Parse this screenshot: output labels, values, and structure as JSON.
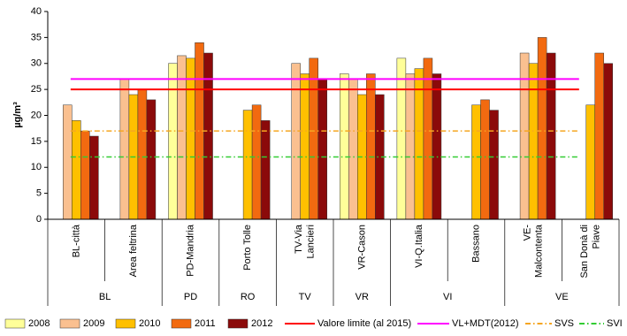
{
  "chart_data": {
    "type": "bar",
    "y_label": "µg/m³",
    "categories": [
      "BL-città",
      "Area feltrina",
      "PD-Mandria",
      "Porto Tolle",
      "TV-Via\nLancieri",
      "VR-Cason",
      "VI-Q.Italia",
      "Bassano",
      "VE-\nMalcontenta",
      "San Donà di\nPiave"
    ],
    "category_groups": [
      "BL",
      "BL",
      "PD",
      "RO",
      "TV",
      "VR",
      "VI",
      "VI",
      "VE",
      "VE"
    ],
    "series": [
      {
        "name": "2008",
        "color": "#ffff99",
        "values": [
          null,
          null,
          30,
          null,
          null,
          28,
          31,
          null,
          null,
          null
        ]
      },
      {
        "name": "2009",
        "color": "#fac090",
        "values": [
          22,
          27,
          31.5,
          null,
          30,
          27,
          28,
          null,
          32,
          null
        ]
      },
      {
        "name": "2010",
        "color": "#ffc000",
        "values": [
          19,
          24,
          31,
          21,
          28,
          24,
          29,
          22,
          30,
          22
        ]
      },
      {
        "name": "2011",
        "color": "#f26a10",
        "values": [
          17,
          25,
          34,
          22,
          31,
          28,
          31,
          23,
          35,
          32
        ]
      },
      {
        "name": "2012",
        "color": "#8b0a0a",
        "values": [
          16,
          23,
          32,
          19,
          27,
          24,
          28,
          21,
          32,
          30
        ]
      }
    ],
    "reference_lines": [
      {
        "name": "Valore limite (al 2015)",
        "color": "#ff0000",
        "value": 25,
        "dash": "solid"
      },
      {
        "name": "VL+MDT(2012)",
        "color": "#ff00ff",
        "value": 27,
        "dash": "solid"
      },
      {
        "name": "SVS",
        "color": "#f5a623",
        "value": 17,
        "dash": "dashdot"
      },
      {
        "name": "SVI",
        "color": "#33cc33",
        "value": 12,
        "dash": "dashdot"
      }
    ],
    "ylim": [
      0,
      40
    ],
    "yticks": [
      0,
      5,
      10,
      15,
      20,
      25,
      30,
      35,
      40
    ]
  }
}
